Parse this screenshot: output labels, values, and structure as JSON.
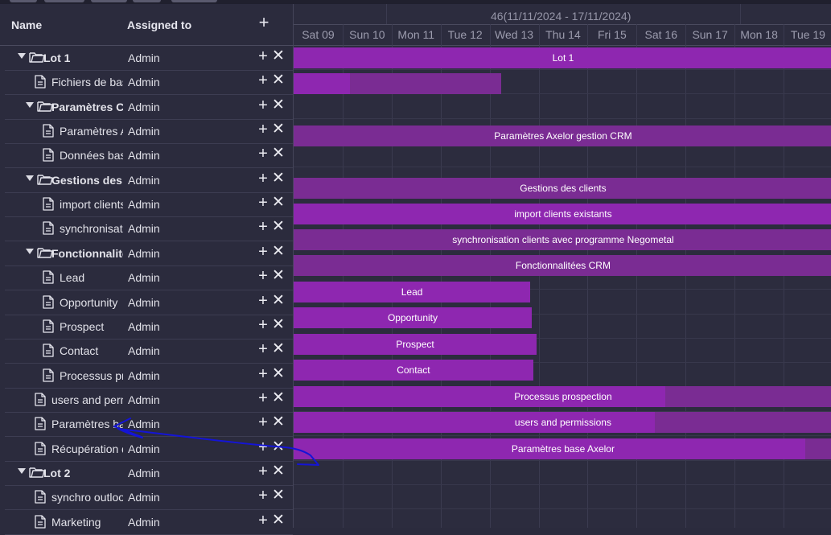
{
  "grid": {
    "headers": {
      "name": "Name",
      "assigned": "Assigned to"
    },
    "rows": [
      {
        "name": "Lot 1",
        "assigned": "Admin",
        "type": "folder",
        "level": 0,
        "bold": true
      },
      {
        "name": "Fichiers de base",
        "assigned": "Admin",
        "type": "file",
        "level": 1,
        "bold": false
      },
      {
        "name": "Paramètres CRM",
        "assigned": "Admin",
        "type": "folder",
        "level": 1,
        "bold": true
      },
      {
        "name": "Paramètres Axelor",
        "assigned": "Admin",
        "type": "file",
        "level": 2,
        "bold": false
      },
      {
        "name": "Données base",
        "assigned": "Admin",
        "type": "file",
        "level": 2,
        "bold": false
      },
      {
        "name": "Gestions des clients",
        "assigned": "Admin",
        "type": "folder",
        "level": 1,
        "bold": true
      },
      {
        "name": "import clients",
        "assigned": "Admin",
        "type": "file",
        "level": 2,
        "bold": false
      },
      {
        "name": "synchronisation",
        "assigned": "Admin",
        "type": "file",
        "level": 2,
        "bold": false
      },
      {
        "name": "Fonctionnalités",
        "assigned": "Admin",
        "type": "folder",
        "level": 1,
        "bold": true
      },
      {
        "name": "Lead",
        "assigned": "Admin",
        "type": "file",
        "level": 2,
        "bold": false
      },
      {
        "name": "Opportunity",
        "assigned": "Admin",
        "type": "file",
        "level": 2,
        "bold": false
      },
      {
        "name": "Prospect",
        "assigned": "Admin",
        "type": "file",
        "level": 2,
        "bold": false
      },
      {
        "name": "Contact",
        "assigned": "Admin",
        "type": "file",
        "level": 2,
        "bold": false
      },
      {
        "name": "Processus prospection",
        "assigned": "Admin",
        "type": "file",
        "level": 2,
        "bold": false
      },
      {
        "name": "users and permissions",
        "assigned": "Admin",
        "type": "file",
        "level": 1,
        "bold": false
      },
      {
        "name": "Paramètres base",
        "assigned": "Admin",
        "type": "file",
        "level": 1,
        "bold": false
      },
      {
        "name": "Récupération des",
        "assigned": "Admin",
        "type": "file",
        "level": 1,
        "bold": false
      },
      {
        "name": "Lot 2",
        "assigned": "Admin",
        "type": "folder",
        "level": 0,
        "bold": true
      },
      {
        "name": "synchro outlook",
        "assigned": "Admin",
        "type": "file",
        "level": 1,
        "bold": false
      },
      {
        "name": "Marketing",
        "assigned": "Admin",
        "type": "file",
        "level": 1,
        "bold": false
      }
    ]
  },
  "timeline": {
    "week_label": "46(11/11/2024 - 17/11/2024)",
    "days": [
      "Sat 09",
      "Sun 10",
      "Mon 11",
      "Tue 12",
      "Wed 13",
      "Thu 14",
      "Fri 15",
      "Sat 16",
      "Sun 17",
      "Mon 18",
      "Tue 19"
    ]
  },
  "bars": [
    {
      "label": "Lot 1",
      "start_day": 0,
      "end_day": 11,
      "progress": 1.0
    },
    {
      "label": "",
      "start_day": 0,
      "end_day": 4.24,
      "progress": 0.27
    },
    {
      "label": "Paramètres Axelor gestion CRM",
      "start_day": 0,
      "end_day": 11,
      "progress": 0.0
    },
    {
      "label": "Gestions des clients",
      "start_day": 0,
      "end_day": 11,
      "progress": 0.0
    },
    {
      "label": "import clients existants",
      "start_day": 0,
      "end_day": 11,
      "progress": 1.0
    },
    {
      "label": "synchronisation clients avec programme Negometal",
      "start_day": 0,
      "end_day": 11,
      "progress": 0.0
    },
    {
      "label": "Fonctionnalitées CRM",
      "start_day": 0,
      "end_day": 11,
      "progress": 0.0
    },
    {
      "label": "Lead",
      "start_day": 0,
      "end_day": 4.83,
      "progress": 1.0
    },
    {
      "label": "Opportunity",
      "start_day": 0,
      "end_day": 4.86,
      "progress": 1.0
    },
    {
      "label": "Prospect",
      "start_day": 0,
      "end_day": 4.96,
      "progress": 1.0
    },
    {
      "label": "Contact",
      "start_day": 0,
      "end_day": 4.89,
      "progress": 1.0
    },
    {
      "label": "Processus prospection",
      "start_day": 0,
      "end_day": 11,
      "progress": 0.69
    },
    {
      "label": "users and permissions",
      "start_day": 0,
      "end_day": 11,
      "progress": 0.67
    },
    {
      "label": "Paramètres base Axelor",
      "start_day": 0,
      "end_day": 11,
      "progress": 0.95
    }
  ],
  "colors": {
    "background": "#2b2b3d",
    "bar_base": "#7a2c93",
    "bar_progress": "#8e27b0",
    "annotation": "#1414d6"
  },
  "icons": {
    "folder": "folder-icon",
    "file": "file-icon",
    "add": "plus-icon",
    "delete": "close-icon",
    "expand": "caret-down-icon"
  }
}
